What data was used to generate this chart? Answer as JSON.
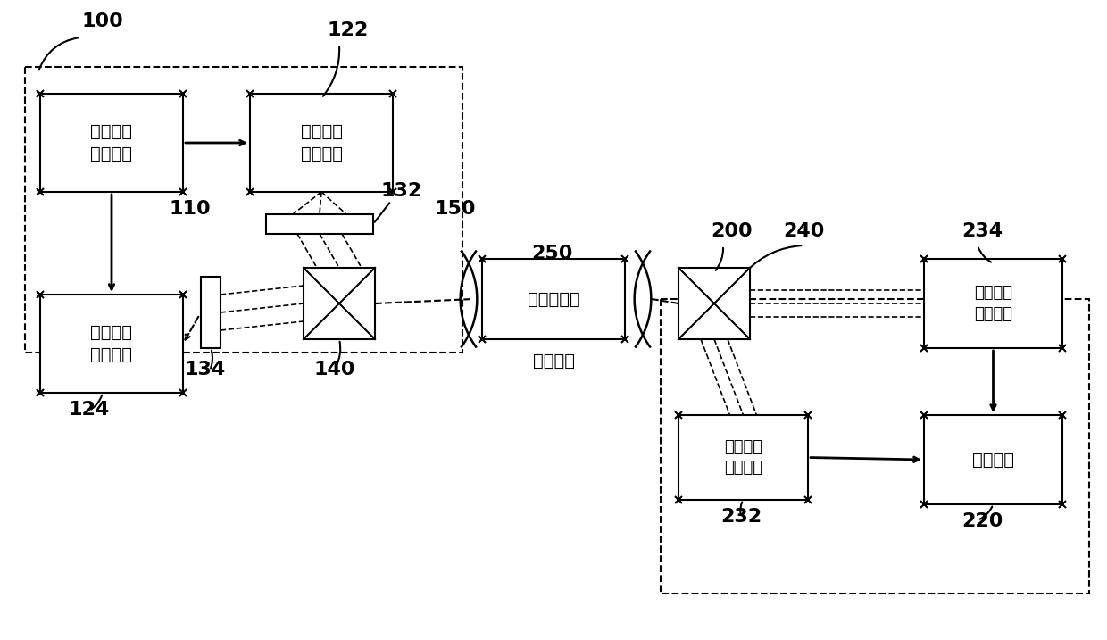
{
  "bg_color": "#ffffff",
  "box_color": "#000000",
  "box_fill": "#ffffff",
  "dashed_box_color": "#000000",
  "label_100": "100",
  "label_110": "110",
  "label_122": "122",
  "label_124": "124",
  "label_132": "132",
  "label_134": "134",
  "label_140": "140",
  "label_150": "150",
  "label_200": "200",
  "label_220": "220",
  "label_232": "232",
  "label_234": "234",
  "label_240": "240",
  "label_250": "250",
  "box_digital": "数字信号\n生成单元",
  "box_pulse1": "第一脉冲\n太赫兹源",
  "box_pulse2": "第二脉冲\n太赫兹源",
  "box_thz_signal": "太赫兹信号",
  "box_demod": "解调单元",
  "box_detector1": "第一太赫\n兹探测器",
  "box_detector2": "第二太赫\n兹探测器",
  "label_propagation": "传播空间"
}
